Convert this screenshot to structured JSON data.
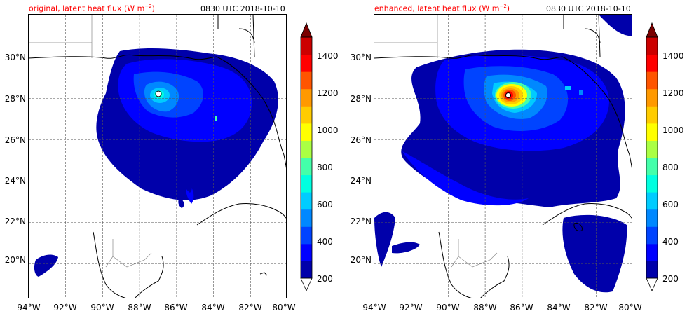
{
  "panels": [
    {
      "title": "original, latent heat flux (W m",
      "unit_sup": "−2",
      "unit_close": ")",
      "time": "0830 UTC 2018-10-10"
    },
    {
      "title": "enhanced, latent heat flux (W m",
      "unit_sup": "−2",
      "unit_close": ")",
      "time": "0830 UTC 2018-10-10"
    }
  ],
  "map": {
    "lon_labels": [
      "94°W",
      "92°W",
      "90°W",
      "88°W",
      "86°W",
      "84°W",
      "82°W",
      "80°W"
    ],
    "lat_labels": [
      "20°N",
      "22°N",
      "24°N",
      "26°N",
      "28°N",
      "30°N"
    ],
    "lon_range": [
      -94,
      -80
    ],
    "lat_range": [
      18.3,
      32.1
    ]
  },
  "colorbar": {
    "ticks": [
      "200",
      "400",
      "600",
      "800",
      "1000",
      "1200",
      "1400"
    ],
    "levels": [
      200,
      300,
      400,
      500,
      600,
      700,
      800,
      900,
      1000,
      1100,
      1200,
      1300,
      1400,
      1500
    ],
    "colors": [
      "#0000aa",
      "#0000ff",
      "#0044ff",
      "#0088ff",
      "#00ccff",
      "#00ffe0",
      "#44ffaa",
      "#aaff44",
      "#ffff00",
      "#ffcc00",
      "#ff9900",
      "#ff5500",
      "#ff0000",
      "#cc0000"
    ],
    "over_color": "#7a0000",
    "under_color": "#ffffff"
  }
}
